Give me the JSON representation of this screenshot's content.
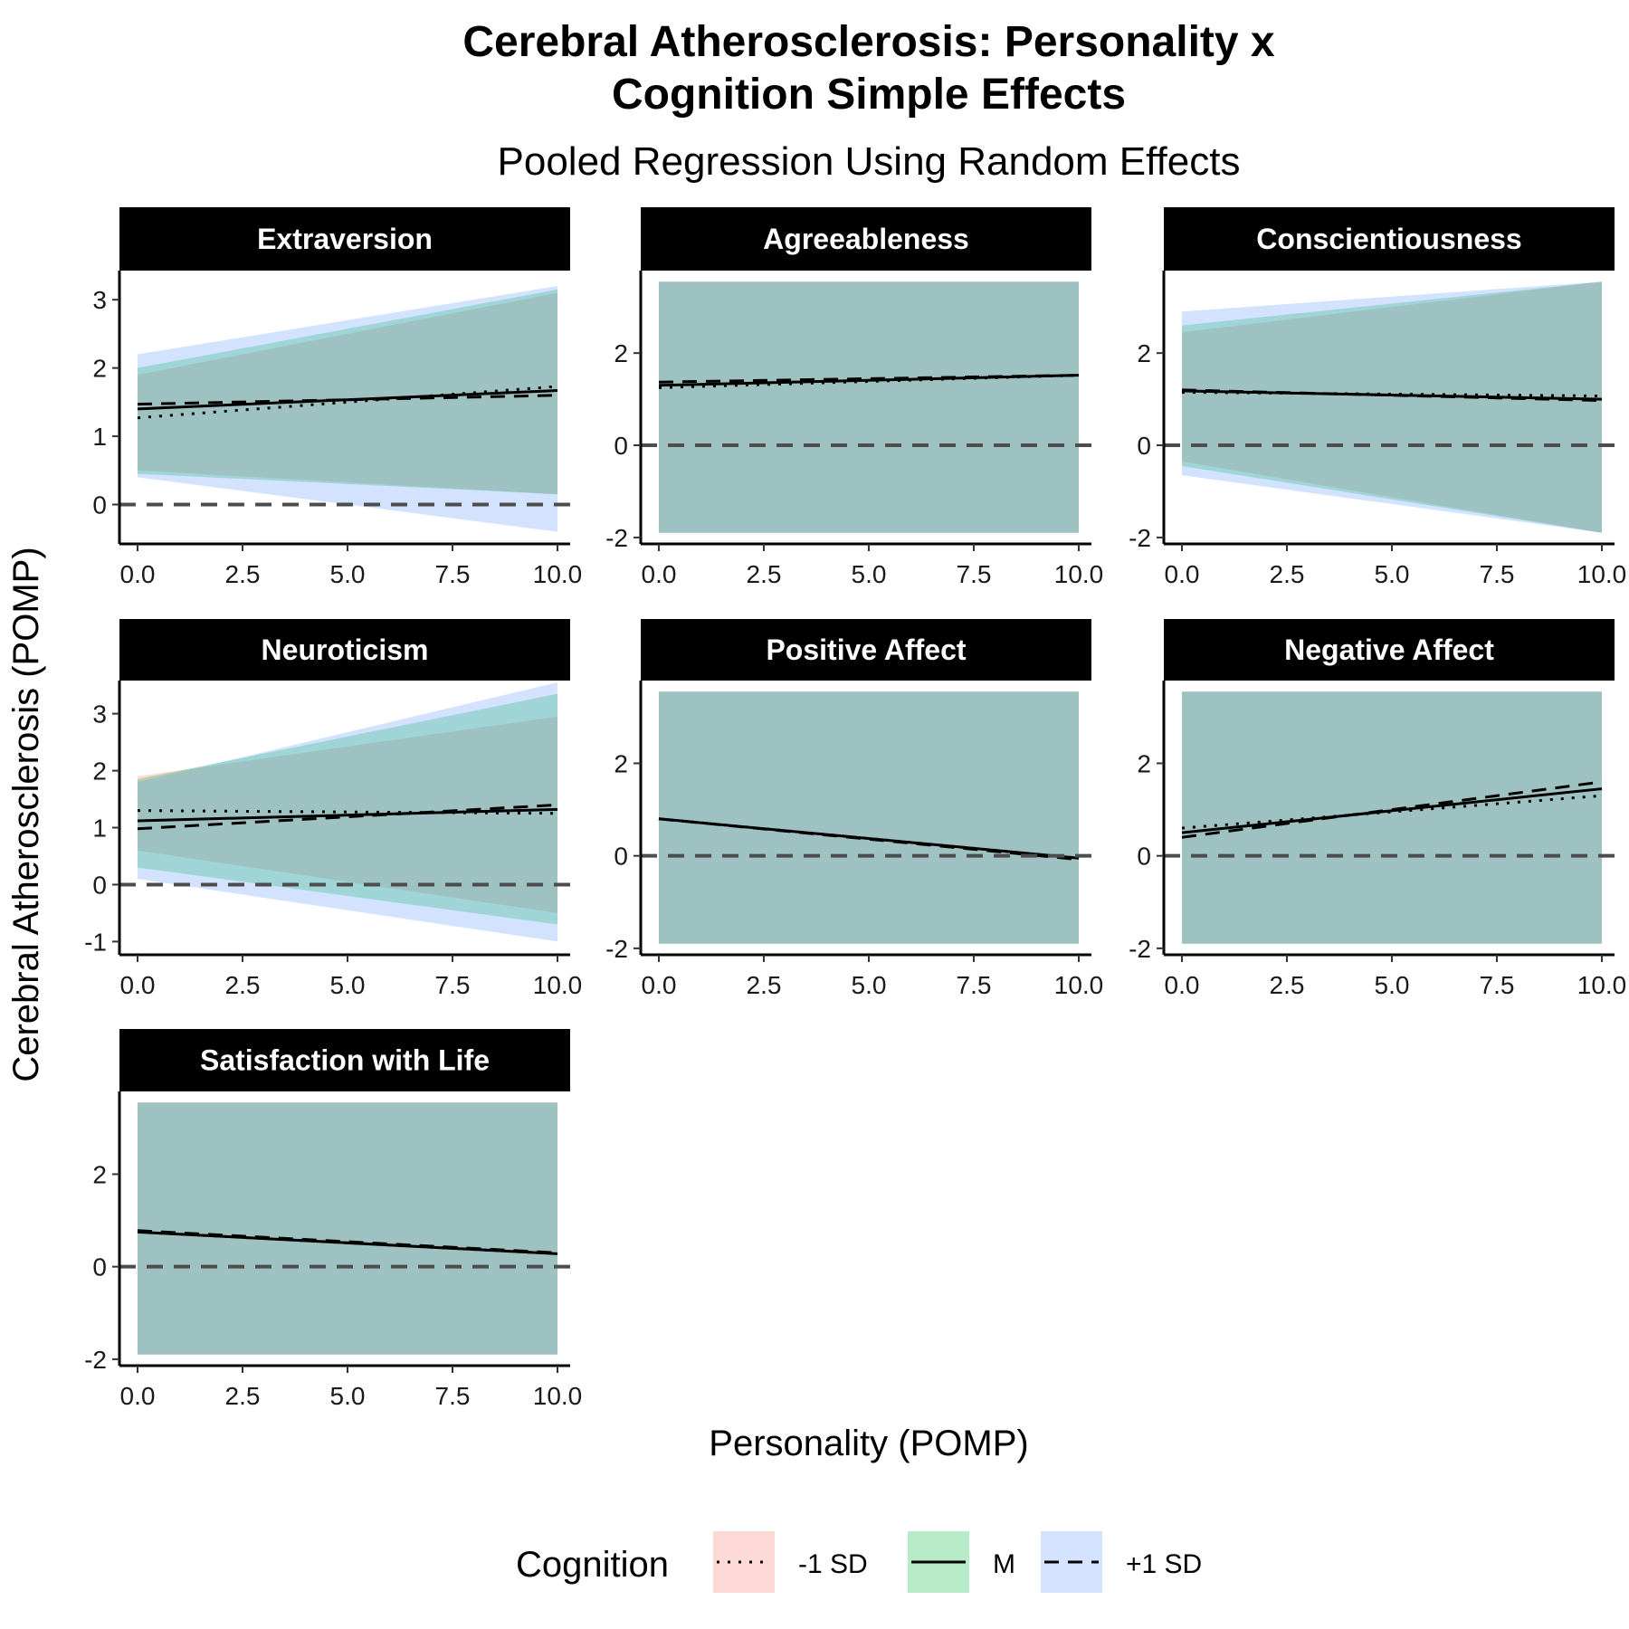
{
  "chart_data": {
    "type": "line",
    "title": "Cerebral Atherosclerosis: Personality x Cognition Simple Effects",
    "title_lines": [
      "Cerebral Atherosclerosis: Personality x",
      "Cognition Simple Effects"
    ],
    "subtitle": "Pooled Regression Using Random Effects",
    "xlabel": "Personality (POMP)",
    "ylabel": "Cerebral Atherosclerosis (POMP)",
    "xlim": [
      0,
      10
    ],
    "x_ticks": [
      0,
      2.5,
      5,
      7.5,
      10
    ],
    "x_tick_labels": [
      "0.0",
      "2.5",
      "5.0",
      "7.5",
      "10.0"
    ],
    "reference_line": {
      "y": 0,
      "style": "dashed"
    },
    "legend": {
      "title": "Cognition",
      "position": "bottom",
      "entries": [
        {
          "label": "-1 SD",
          "linetype": "dotted",
          "fill": "#F8766D"
        },
        {
          "label": "M",
          "linetype": "solid",
          "fill": "#00BA38"
        },
        {
          "label": "+1 SD",
          "linetype": "dashed",
          "fill": "#619CFF"
        }
      ]
    },
    "panels": [
      {
        "name": "Extraversion",
        "ylim": [
          -0.55,
          3.4
        ],
        "y_ticks": [
          0,
          1,
          2,
          3
        ],
        "x": [
          0,
          10
        ],
        "series": [
          {
            "name": "-1 SD",
            "y": [
              1.27,
              1.73
            ],
            "lower": [
              0.5,
              0.15
            ],
            "upper": [
              1.9,
              3.1
            ]
          },
          {
            "name": "M",
            "y": [
              1.4,
              1.67
            ],
            "lower": [
              0.45,
              0.15
            ],
            "upper": [
              2.0,
              3.15
            ]
          },
          {
            "name": "+1 SD",
            "y": [
              1.47,
              1.6
            ],
            "lower": [
              0.4,
              -0.4
            ],
            "upper": [
              2.2,
              3.2
            ]
          }
        ]
      },
      {
        "name": "Agreeableness",
        "ylim": [
          -2.1,
          3.75
        ],
        "y_ticks": [
          -2,
          0,
          2
        ],
        "x": [
          0,
          10
        ],
        "series": [
          {
            "name": "-1 SD",
            "y": [
              1.25,
              1.52
            ],
            "lower": [
              -1.9,
              -1.9
            ],
            "upper": [
              3.55,
              3.55
            ]
          },
          {
            "name": "M",
            "y": [
              1.3,
              1.52
            ],
            "lower": [
              -1.9,
              -1.9
            ],
            "upper": [
              3.55,
              3.55
            ]
          },
          {
            "name": "+1 SD",
            "y": [
              1.37,
              1.52
            ],
            "lower": [
              -1.9,
              -1.9
            ],
            "upper": [
              3.55,
              3.55
            ]
          }
        ]
      },
      {
        "name": "Conscientiousness",
        "ylim": [
          -2.1,
          3.75
        ],
        "y_ticks": [
          -2,
          0,
          2
        ],
        "x": [
          0,
          10
        ],
        "series": [
          {
            "name": "-1 SD",
            "y": [
              1.15,
              1.07
            ],
            "lower": [
              -0.35,
              -1.9
            ],
            "upper": [
              2.45,
              3.55
            ]
          },
          {
            "name": "M",
            "y": [
              1.18,
              1.0
            ],
            "lower": [
              -0.45,
              -1.9
            ],
            "upper": [
              2.6,
              3.55
            ]
          },
          {
            "name": "+1 SD",
            "y": [
              1.2,
              0.97
            ],
            "lower": [
              -0.65,
              -1.9
            ],
            "upper": [
              2.9,
              3.55
            ]
          }
        ]
      },
      {
        "name": "Neuroticism",
        "ylim": [
          -1.2,
          3.55
        ],
        "y_ticks": [
          -1,
          0,
          1,
          2,
          3
        ],
        "x": [
          0,
          10
        ],
        "series": [
          {
            "name": "-1 SD",
            "y": [
              1.3,
              1.25
            ],
            "lower": [
              0.6,
              -0.5
            ],
            "upper": [
              1.9,
              2.95
            ]
          },
          {
            "name": "M",
            "y": [
              1.12,
              1.32
            ],
            "lower": [
              0.3,
              -0.7
            ],
            "upper": [
              1.85,
              3.35
            ]
          },
          {
            "name": "+1 SD",
            "y": [
              0.98,
              1.4
            ],
            "lower": [
              0.1,
              -1.0
            ],
            "upper": [
              1.8,
              3.55
            ]
          }
        ]
      },
      {
        "name": "Positive Affect",
        "ylim": [
          -2.1,
          3.75
        ],
        "y_ticks": [
          -2,
          0,
          2
        ],
        "x": [
          0,
          10
        ],
        "series": [
          {
            "name": "-1 SD",
            "y": [
              0.8,
              -0.05
            ],
            "lower": [
              -1.9,
              -1.9
            ],
            "upper": [
              3.55,
              3.55
            ]
          },
          {
            "name": "M",
            "y": [
              0.8,
              -0.05
            ],
            "lower": [
              -1.9,
              -1.9
            ],
            "upper": [
              3.55,
              3.55
            ]
          },
          {
            "name": "+1 SD",
            "y": [
              0.8,
              -0.08
            ],
            "lower": [
              -1.9,
              -1.9
            ],
            "upper": [
              3.55,
              3.55
            ]
          }
        ]
      },
      {
        "name": "Negative Affect",
        "ylim": [
          -2.1,
          3.75
        ],
        "y_ticks": [
          -2,
          0,
          2
        ],
        "x": [
          0,
          10
        ],
        "series": [
          {
            "name": "-1 SD",
            "y": [
              0.6,
              1.3
            ],
            "lower": [
              -1.9,
              -1.9
            ],
            "upper": [
              3.55,
              3.55
            ]
          },
          {
            "name": "M",
            "y": [
              0.5,
              1.45
            ],
            "lower": [
              -1.9,
              -1.9
            ],
            "upper": [
              3.55,
              3.55
            ]
          },
          {
            "name": "+1 SD",
            "y": [
              0.4,
              1.6
            ],
            "lower": [
              -1.9,
              -1.9
            ],
            "upper": [
              3.55,
              3.55
            ]
          }
        ]
      },
      {
        "name": "Satisfaction with Life",
        "ylim": [
          -2.1,
          3.75
        ],
        "y_ticks": [
          -2,
          0,
          2
        ],
        "x": [
          0,
          10
        ],
        "series": [
          {
            "name": "-1 SD",
            "y": [
              0.75,
              0.28
            ],
            "lower": [
              -1.9,
              -1.9
            ],
            "upper": [
              3.55,
              3.55
            ]
          },
          {
            "name": "M",
            "y": [
              0.75,
              0.28
            ],
            "lower": [
              -1.9,
              -1.9
            ],
            "upper": [
              3.55,
              3.55
            ]
          },
          {
            "name": "+1 SD",
            "y": [
              0.78,
              0.3
            ],
            "lower": [
              -1.9,
              -1.9
            ],
            "upper": [
              3.55,
              3.55
            ]
          }
        ]
      }
    ]
  }
}
